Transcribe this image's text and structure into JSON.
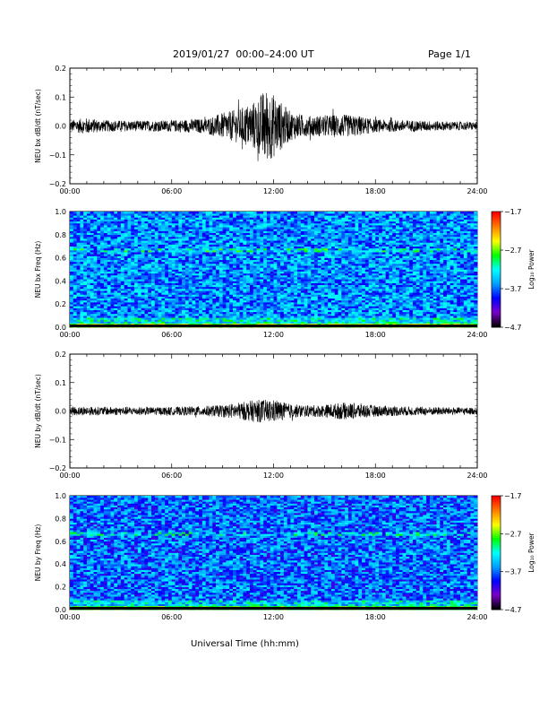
{
  "header": {
    "title": "2019/01/27  00:00–24:00 UT",
    "page": "Page 1/1"
  },
  "chart_data": [
    {
      "type": "line",
      "title": "",
      "ylabel": "NEU bx dB/dt (nT/sec)",
      "xlabel": "",
      "xlim": [
        0,
        24
      ],
      "ylim": [
        -0.2,
        0.2
      ],
      "grid": false,
      "x_ticks": [
        "00:00",
        "06:00",
        "12:00",
        "18:00",
        "24:00"
      ],
      "y_ticks": [
        "−0.2",
        "−0.1",
        "0.0",
        "0.1",
        "0.2"
      ],
      "envelope": [
        {
          "x": 0,
          "amp": 0.02
        },
        {
          "x": 1,
          "amp": 0.028
        },
        {
          "x": 2,
          "amp": 0.02
        },
        {
          "x": 4,
          "amp": 0.018
        },
        {
          "x": 6,
          "amp": 0.02
        },
        {
          "x": 8,
          "amp": 0.026
        },
        {
          "x": 9,
          "amp": 0.045
        },
        {
          "x": 10,
          "amp": 0.06
        },
        {
          "x": 11,
          "amp": 0.09
        },
        {
          "x": 11.5,
          "amp": 0.13
        },
        {
          "x": 12,
          "amp": 0.11
        },
        {
          "x": 12.5,
          "amp": 0.08
        },
        {
          "x": 13,
          "amp": 0.05
        },
        {
          "x": 14,
          "amp": 0.035
        },
        {
          "x": 16,
          "amp": 0.04
        },
        {
          "x": 17,
          "amp": 0.035
        },
        {
          "x": 18,
          "amp": 0.022
        },
        {
          "x": 20,
          "amp": 0.02
        },
        {
          "x": 22,
          "amp": 0.016
        },
        {
          "x": 24,
          "amp": 0.014
        }
      ]
    },
    {
      "type": "heatmap",
      "title": "",
      "ylabel": "NEU bx Freq (Hz)",
      "xlabel": "",
      "xlim": [
        0,
        24
      ],
      "ylim": [
        0,
        1.0
      ],
      "x_ticks": [
        "00:00",
        "06:00",
        "12:00",
        "18:00",
        "24:00"
      ],
      "y_ticks": [
        "0.0",
        "0.2",
        "0.4",
        "0.6",
        "0.8",
        "1.0"
      ],
      "colorbar": {
        "label": "Log₁₀ Power",
        "range": [
          -4.7,
          -1.7
        ],
        "ticks": [
          "−1.7",
          "−2.7",
          "−3.7",
          "−4.7"
        ],
        "colors": [
          "#000000",
          "#7a00c8",
          "#0000ff",
          "#00a0ff",
          "#00ffff",
          "#00ff00",
          "#ffff00",
          "#ff8000",
          "#ff0000"
        ]
      },
      "features": {
        "background_level": -3.6,
        "low_freq_band_max_hz": 0.03,
        "low_freq_level": -2.6,
        "line_at_hz": 0.67
      }
    },
    {
      "type": "line",
      "title": "",
      "ylabel": "NEU by dB/dt (nT/sec)",
      "xlabel": "",
      "xlim": [
        0,
        24
      ],
      "ylim": [
        -0.2,
        0.2
      ],
      "grid": false,
      "x_ticks": [
        "00:00",
        "06:00",
        "12:00",
        "18:00",
        "24:00"
      ],
      "y_ticks": [
        "−0.2",
        "−0.1",
        "0.0",
        "0.1",
        "0.2"
      ],
      "envelope": [
        {
          "x": 0,
          "amp": 0.016
        },
        {
          "x": 2,
          "amp": 0.015
        },
        {
          "x": 4,
          "amp": 0.014
        },
        {
          "x": 6,
          "amp": 0.014
        },
        {
          "x": 8,
          "amp": 0.018
        },
        {
          "x": 9,
          "amp": 0.022
        },
        {
          "x": 10,
          "amp": 0.03
        },
        {
          "x": 11,
          "amp": 0.04
        },
        {
          "x": 12,
          "amp": 0.04
        },
        {
          "x": 13,
          "amp": 0.025
        },
        {
          "x": 14,
          "amp": 0.02
        },
        {
          "x": 15,
          "amp": 0.022
        },
        {
          "x": 16,
          "amp": 0.03
        },
        {
          "x": 17,
          "amp": 0.028
        },
        {
          "x": 18,
          "amp": 0.02
        },
        {
          "x": 20,
          "amp": 0.016
        },
        {
          "x": 22,
          "amp": 0.014
        },
        {
          "x": 24,
          "amp": 0.012
        }
      ]
    },
    {
      "type": "heatmap",
      "title": "",
      "ylabel": "NEU by Freq (Hz)",
      "xlabel": "Universal Time (hh:mm)",
      "xlim": [
        0,
        24
      ],
      "ylim": [
        0,
        1.0
      ],
      "x_ticks": [
        "00:00",
        "06:00",
        "12:00",
        "18:00",
        "24:00"
      ],
      "y_ticks": [
        "0.0",
        "0.2",
        "0.4",
        "0.6",
        "0.8",
        "1.0"
      ],
      "colorbar": {
        "label": "Log₁₀ Power",
        "range": [
          -4.7,
          -1.7
        ],
        "ticks": [
          "−1.7",
          "−2.7",
          "−3.7",
          "−4.7"
        ],
        "colors": [
          "#000000",
          "#7a00c8",
          "#0000ff",
          "#00a0ff",
          "#00ffff",
          "#00ff00",
          "#ffff00",
          "#ff8000",
          "#ff0000"
        ]
      },
      "features": {
        "background_level": -3.7,
        "low_freq_band_max_hz": 0.03,
        "low_freq_level": -2.8,
        "line_at_hz": 0.67
      }
    }
  ]
}
